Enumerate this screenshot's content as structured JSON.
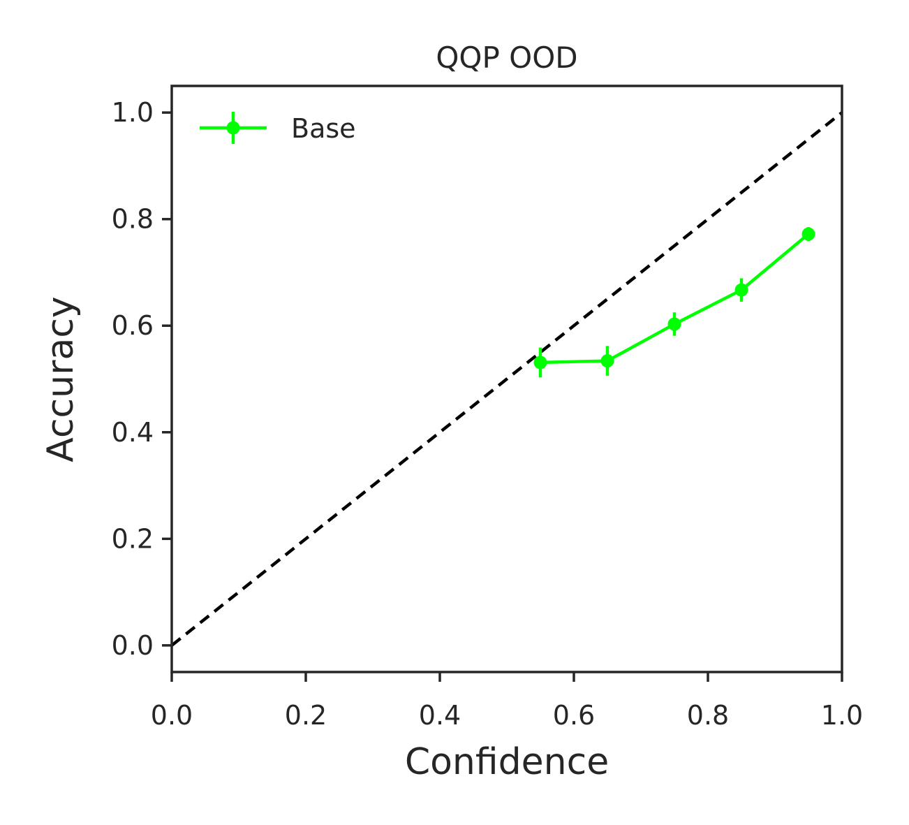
{
  "chart_data": {
    "type": "line",
    "title": "QQP OOD",
    "xlabel": "Confidence",
    "ylabel": "Accuracy",
    "xlim": [
      0.0,
      1.0
    ],
    "ylim": [
      -0.05,
      1.05
    ],
    "xticks": [
      "0.0",
      "0.2",
      "0.4",
      "0.6",
      "0.8",
      "1.0"
    ],
    "yticks": [
      "0.0",
      "0.2",
      "0.4",
      "0.6",
      "0.8",
      "1.0"
    ],
    "grid": false,
    "legend_position": "top-left",
    "reference_line": {
      "style": "dashed",
      "color": "#000000",
      "x": [
        0.0,
        1.0
      ],
      "y": [
        0.0,
        1.0
      ]
    },
    "series": [
      {
        "name": "Base",
        "color": "#00ff00",
        "x": [
          0.55,
          0.65,
          0.75,
          0.85,
          0.95
        ],
        "y": [
          0.531,
          0.534,
          0.603,
          0.667,
          0.772
        ],
        "yerr": [
          0.028,
          0.028,
          0.022,
          0.022,
          0.013
        ]
      }
    ]
  }
}
